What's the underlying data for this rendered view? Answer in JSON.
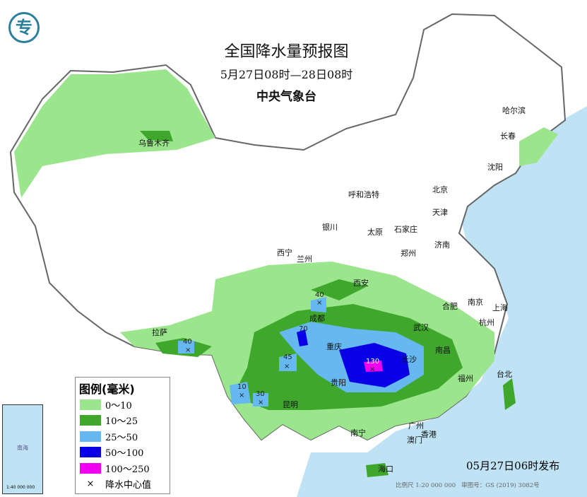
{
  "header": {
    "title": "全国降水量预报图",
    "period": "5月27日08时—28日08时",
    "agency": "中央气象台",
    "logo_icon": "cma-logo"
  },
  "legend": {
    "title": "图例(毫米)",
    "items": [
      {
        "label": "0～10",
        "color": "#9be68c"
      },
      {
        "label": "10～25",
        "color": "#3fa72c"
      },
      {
        "label": "25～50",
        "color": "#66b8f0"
      },
      {
        "label": "50～100",
        "color": "#0a00e6"
      },
      {
        "label": "100～250",
        "color": "#f000f0"
      }
    ],
    "center_label": "降水中心值"
  },
  "cities": [
    {
      "name": "乌鲁木齐"
    },
    {
      "name": "哈尔滨"
    },
    {
      "name": "长春"
    },
    {
      "name": "沈阳"
    },
    {
      "name": "北京"
    },
    {
      "name": "天津"
    },
    {
      "name": "呼和浩特"
    },
    {
      "name": "石家庄"
    },
    {
      "name": "太原"
    },
    {
      "name": "济南"
    },
    {
      "name": "银川"
    },
    {
      "name": "西宁"
    },
    {
      "name": "兰州"
    },
    {
      "name": "郑州"
    },
    {
      "name": "西安"
    },
    {
      "name": "合肥"
    },
    {
      "name": "南京"
    },
    {
      "name": "上海"
    },
    {
      "name": "杭州"
    },
    {
      "name": "武汉"
    },
    {
      "name": "成都"
    },
    {
      "name": "重庆"
    },
    {
      "name": "长沙"
    },
    {
      "name": "南昌"
    },
    {
      "name": "拉萨"
    },
    {
      "name": "贵阳"
    },
    {
      "name": "昆明"
    },
    {
      "name": "福州"
    },
    {
      "name": "台北"
    },
    {
      "name": "南宁"
    },
    {
      "name": "广州"
    },
    {
      "name": "香港"
    },
    {
      "name": "澳门"
    },
    {
      "name": "海口"
    }
  ],
  "rain_centers": [
    "40",
    "70",
    "45",
    "40",
    "10",
    "30",
    "130"
  ],
  "inset": {
    "label": "南海",
    "scale": "1:40 000 000"
  },
  "footer": {
    "issued": "05月27日06时发布",
    "scale": "比例尺 1:20 000 000",
    "map_number": "审图号：GS (2019) 3082号"
  }
}
